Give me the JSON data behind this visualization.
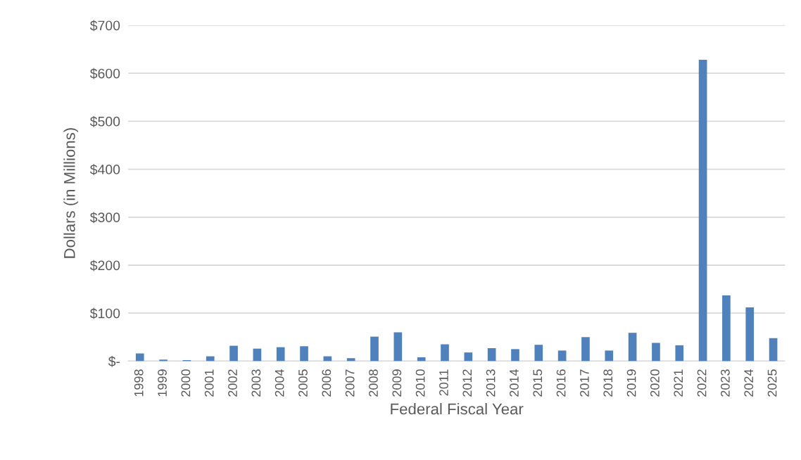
{
  "chart_data": {
    "type": "bar",
    "xlabel": "Federal Fiscal Year",
    "ylabel": "Dollars (in Millions)",
    "categories": [
      "1998",
      "1999",
      "2000",
      "2001",
      "2002",
      "2003",
      "2004",
      "2005",
      "2006",
      "2007",
      "2008",
      "2009",
      "2010",
      "2011",
      "2012",
      "2013",
      "2014",
      "2015",
      "2016",
      "2017",
      "2018",
      "2019",
      "2020",
      "2021",
      "2022",
      "2023",
      "2024",
      "2025"
    ],
    "series": [
      {
        "color": "#4f81bd",
        "values": [
          16,
          3,
          2,
          10,
          32,
          26,
          29,
          31,
          10,
          6,
          51,
          60,
          8,
          35,
          18,
          27,
          25,
          34,
          22,
          50,
          22,
          59,
          38,
          33,
          628,
          137,
          112,
          48
        ]
      }
    ],
    "ylim": [
      0,
      700
    ],
    "yticks": [
      {
        "value": 0,
        "label": "$-"
      },
      {
        "value": 100,
        "label": "$100"
      },
      {
        "value": 200,
        "label": "$200"
      },
      {
        "value": 300,
        "label": "$300"
      },
      {
        "value": 400,
        "label": "$400"
      },
      {
        "value": 500,
        "label": "$500"
      },
      {
        "value": 600,
        "label": "$600"
      },
      {
        "value": 700,
        "label": "$700"
      }
    ],
    "grid": "y",
    "legend": false
  }
}
